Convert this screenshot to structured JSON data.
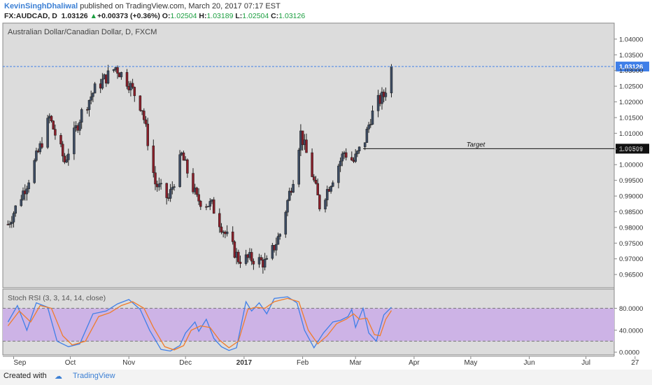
{
  "header": {
    "author": "KevinSinghDhaliwal",
    "published": "published on TradingView.com, March 20, 2017 07:17 EST",
    "symbol": "FX:AUDCAD, D",
    "last": "1.03126",
    "change_arrow": "▲",
    "change": "+0.00373 (+0.36%)",
    "o_label": "O:",
    "o": "1.02504",
    "h_label": "H:",
    "h": "1.03189",
    "l_label": "L:",
    "l": "1.02504",
    "c_label": "C:",
    "c": "1.03126"
  },
  "chart_data": [
    {
      "type": "candlestick",
      "title": "Australian Dollar/Canadian Dollar, D, FXCM",
      "ylim": [
        0.9608,
        1.0451
      ],
      "y_ticks": [
        "1.04000",
        "1.03500",
        "1.03000",
        "1.02500",
        "1.02000",
        "1.01500",
        "1.01000",
        "1.00500",
        "1.00000",
        "0.99500",
        "0.99000",
        "0.98500",
        "0.98000",
        "0.97500",
        "0.97000",
        "0.96500"
      ],
      "x_ticks": [
        "Sep",
        "Oct",
        "Nov",
        "Dec",
        "2017",
        "Feb",
        "Mar",
        "Apr",
        "May",
        "Jun",
        "Jul",
        "27"
      ],
      "last_price_label": "1.03126",
      "last_price": 1.03126,
      "annotation": {
        "text": "Target",
        "price": 1.00509,
        "price_label": "1.00509"
      },
      "anchors": [
        {
          "date": "2016-08-29",
          "price": 0.981
        },
        {
          "date": "2016-09-08",
          "price": 0.994
        },
        {
          "date": "2016-09-15",
          "price": 1.0055
        },
        {
          "date": "2016-09-20",
          "price": 1.015
        },
        {
          "date": "2016-09-28",
          "price": 1.001
        },
        {
          "date": "2016-10-07",
          "price": 1.0165
        },
        {
          "date": "2016-10-14",
          "price": 1.024
        },
        {
          "date": "2016-10-25",
          "price": 1.031
        },
        {
          "date": "2016-11-01",
          "price": 1.026
        },
        {
          "date": "2016-11-08",
          "price": 1.018
        },
        {
          "date": "2016-11-15",
          "price": 0.994
        },
        {
          "date": "2016-11-22",
          "price": 0.989
        },
        {
          "date": "2016-11-29",
          "price": 1.003
        },
        {
          "date": "2016-12-07",
          "price": 0.989
        },
        {
          "date": "2016-12-15",
          "price": 0.987
        },
        {
          "date": "2016-12-22",
          "price": 0.978
        },
        {
          "date": "2016-12-29",
          "price": 0.97
        },
        {
          "date": "2017-01-06",
          "price": 0.97
        },
        {
          "date": "2017-01-13",
          "price": 0.9685
        },
        {
          "date": "2017-01-20",
          "price": 0.978
        },
        {
          "date": "2017-01-27",
          "price": 0.996
        },
        {
          "date": "2017-01-31",
          "price": 1.01
        },
        {
          "date": "2017-02-06",
          "price": 0.997
        },
        {
          "date": "2017-02-10",
          "price": 0.987
        },
        {
          "date": "2017-02-14",
          "price": 0.992
        },
        {
          "date": "2017-02-23",
          "price": 1.004
        },
        {
          "date": "2017-02-28",
          "price": 1.001
        },
        {
          "date": "2017-03-06",
          "price": 1.008
        },
        {
          "date": "2017-03-09",
          "price": 1.015
        },
        {
          "date": "2017-03-13",
          "price": 1.02
        },
        {
          "date": "2017-03-16",
          "price": 1.022
        },
        {
          "date": "2017-03-20",
          "price": 1.03126
        }
      ]
    },
    {
      "type": "line",
      "title": "Stoch RSI (3, 3, 14, 14, close)",
      "ylim": [
        -5,
        115
      ],
      "y_ticks": [
        "80.0000",
        "40.0000",
        "0.0000"
      ],
      "band": [
        20,
        80
      ],
      "colors": {
        "k": "#3f7fe8",
        "d": "#f07c2b",
        "band": "#cdb3e6"
      },
      "series": [
        {
          "key": "k",
          "anchors": [
            {
              "date": "2016-08-29",
              "value": 55
            },
            {
              "date": "2016-09-03",
              "value": 85
            },
            {
              "date": "2016-09-08",
              "value": 40
            },
            {
              "date": "2016-09-13",
              "value": 90
            },
            {
              "date": "2016-09-19",
              "value": 82
            },
            {
              "date": "2016-09-24",
              "value": 20
            },
            {
              "date": "2016-09-30",
              "value": 10
            },
            {
              "date": "2016-10-06",
              "value": 15
            },
            {
              "date": "2016-10-13",
              "value": 70
            },
            {
              "date": "2016-10-20",
              "value": 75
            },
            {
              "date": "2016-10-26",
              "value": 88
            },
            {
              "date": "2016-11-01",
              "value": 96
            },
            {
              "date": "2016-11-07",
              "value": 78
            },
            {
              "date": "2016-11-12",
              "value": 40
            },
            {
              "date": "2016-11-18",
              "value": 5
            },
            {
              "date": "2016-11-23",
              "value": 2
            },
            {
              "date": "2016-11-28",
              "value": 12
            },
            {
              "date": "2016-12-01",
              "value": 35
            },
            {
              "date": "2016-12-06",
              "value": 55
            },
            {
              "date": "2016-12-08",
              "value": 38
            },
            {
              "date": "2016-12-12",
              "value": 60
            },
            {
              "date": "2016-12-16",
              "value": 25
            },
            {
              "date": "2016-12-20",
              "value": 10
            },
            {
              "date": "2016-12-24",
              "value": 3
            },
            {
              "date": "2016-12-28",
              "value": 8
            },
            {
              "date": "2017-01-02",
              "value": 92
            },
            {
              "date": "2017-01-05",
              "value": 75
            },
            {
              "date": "2017-01-09",
              "value": 90
            },
            {
              "date": "2017-01-13",
              "value": 70
            },
            {
              "date": "2017-01-17",
              "value": 98
            },
            {
              "date": "2017-01-24",
              "value": 101
            },
            {
              "date": "2017-01-29",
              "value": 90
            },
            {
              "date": "2017-02-02",
              "value": 40
            },
            {
              "date": "2017-02-07",
              "value": 8
            },
            {
              "date": "2017-02-12",
              "value": 35
            },
            {
              "date": "2017-02-17",
              "value": 55
            },
            {
              "date": "2017-02-21",
              "value": 58
            },
            {
              "date": "2017-02-25",
              "value": 65
            },
            {
              "date": "2017-02-27",
              "value": 78
            },
            {
              "date": "2017-03-01",
              "value": 45
            },
            {
              "date": "2017-03-05",
              "value": 80
            },
            {
              "date": "2017-03-08",
              "value": 35
            },
            {
              "date": "2017-03-12",
              "value": 20
            },
            {
              "date": "2017-03-16",
              "value": 68
            },
            {
              "date": "2017-03-20",
              "value": 82
            }
          ]
        },
        {
          "key": "d",
          "anchors": [
            {
              "date": "2016-08-29",
              "value": 48
            },
            {
              "date": "2016-09-04",
              "value": 75
            },
            {
              "date": "2016-09-10",
              "value": 55
            },
            {
              "date": "2016-09-15",
              "value": 85
            },
            {
              "date": "2016-09-21",
              "value": 80
            },
            {
              "date": "2016-09-27",
              "value": 30
            },
            {
              "date": "2016-10-02",
              "value": 13
            },
            {
              "date": "2016-10-09",
              "value": 20
            },
            {
              "date": "2016-10-16",
              "value": 65
            },
            {
              "date": "2016-10-22",
              "value": 72
            },
            {
              "date": "2016-10-28",
              "value": 85
            },
            {
              "date": "2016-11-03",
              "value": 92
            },
            {
              "date": "2016-11-09",
              "value": 80
            },
            {
              "date": "2016-11-14",
              "value": 45
            },
            {
              "date": "2016-11-20",
              "value": 10
            },
            {
              "date": "2016-11-25",
              "value": 4
            },
            {
              "date": "2016-11-30",
              "value": 12
            },
            {
              "date": "2016-12-04",
              "value": 40
            },
            {
              "date": "2016-12-09",
              "value": 48
            },
            {
              "date": "2016-12-14",
              "value": 45
            },
            {
              "date": "2016-12-19",
              "value": 22
            },
            {
              "date": "2016-12-24",
              "value": 8
            },
            {
              "date": "2016-12-29",
              "value": 20
            },
            {
              "date": "2017-01-03",
              "value": 78
            },
            {
              "date": "2017-01-07",
              "value": 82
            },
            {
              "date": "2017-01-12",
              "value": 80
            },
            {
              "date": "2017-01-17",
              "value": 92
            },
            {
              "date": "2017-01-24",
              "value": 98
            },
            {
              "date": "2017-01-30",
              "value": 92
            },
            {
              "date": "2017-02-04",
              "value": 40
            },
            {
              "date": "2017-02-09",
              "value": 15
            },
            {
              "date": "2017-02-14",
              "value": 30
            },
            {
              "date": "2017-02-19",
              "value": 52
            },
            {
              "date": "2017-02-24",
              "value": 60
            },
            {
              "date": "2017-02-28",
              "value": 70
            },
            {
              "date": "2017-03-03",
              "value": 60
            },
            {
              "date": "2017-03-07",
              "value": 62
            },
            {
              "date": "2017-03-11",
              "value": 32
            },
            {
              "date": "2017-03-14",
              "value": 30
            },
            {
              "date": "2017-03-17",
              "value": 60
            },
            {
              "date": "2017-03-20",
              "value": 76
            }
          ]
        }
      ]
    }
  ],
  "footer": {
    "created": "Created with",
    "brand": "TradingView"
  }
}
